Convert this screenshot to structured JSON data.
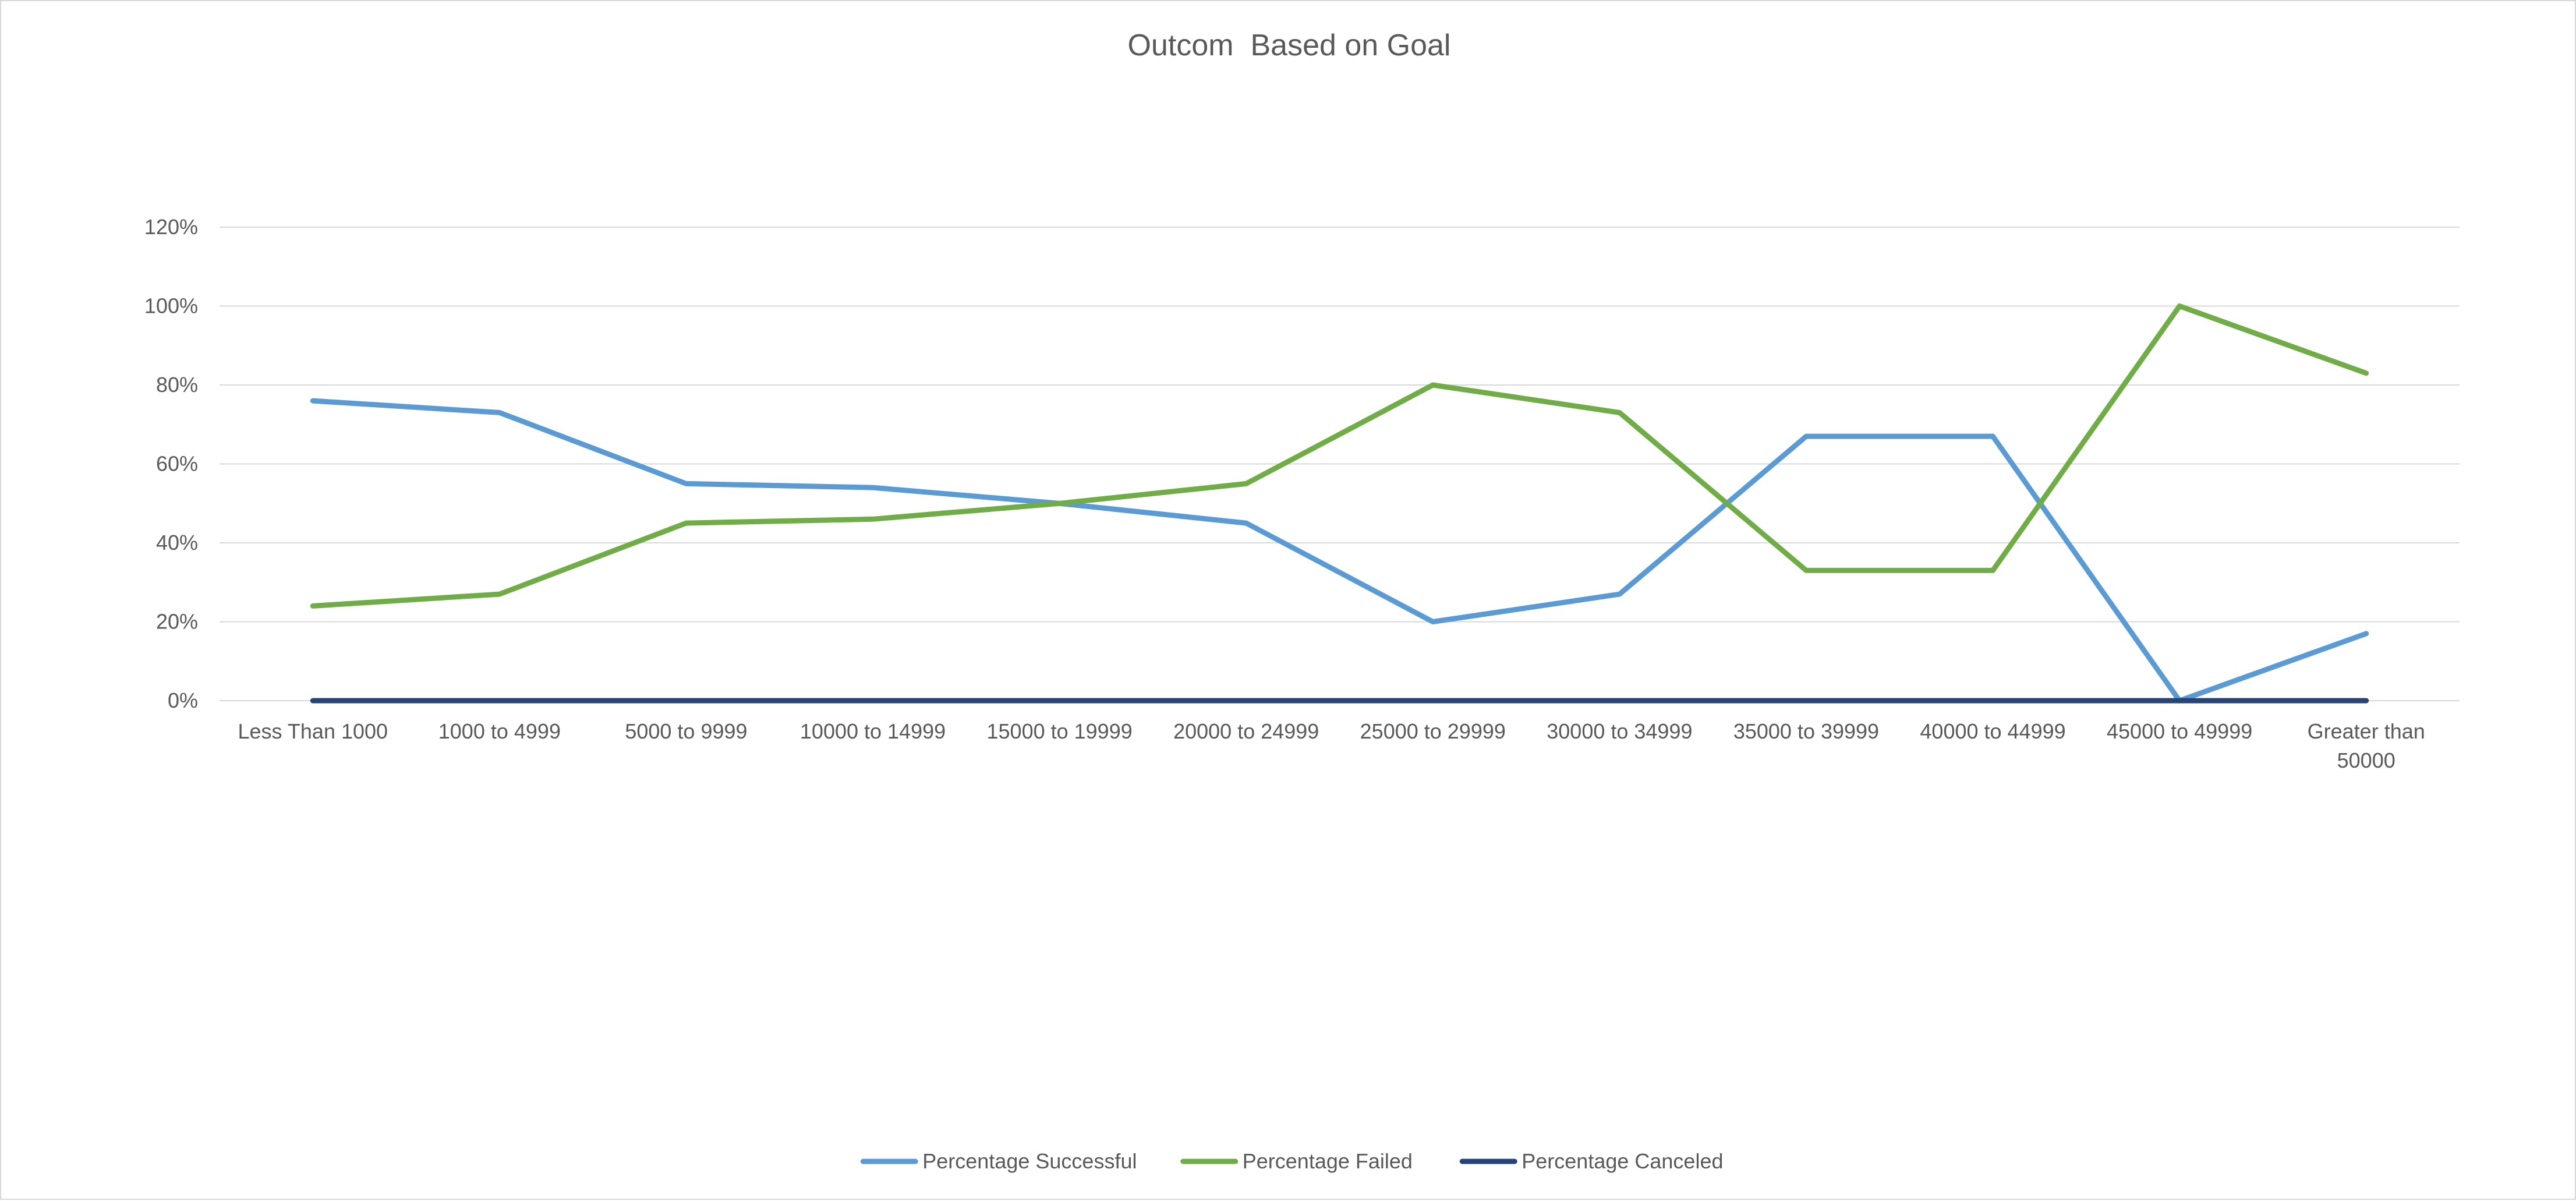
{
  "chart_data": {
    "type": "line",
    "title": "Outcom  Based on Goal",
    "xlabel": "",
    "ylabel": "",
    "categories": [
      "Less Than 1000",
      "1000 to 4999",
      "5000 to 9999",
      "10000 to 14999",
      "15000 to 19999",
      "20000 to 24999",
      "25000 to 29999",
      "30000 to 34999",
      "35000 to 39999",
      "40000 to 44999",
      "45000 to 49999",
      "Greater than 50000"
    ],
    "category_lines": [
      [
        "Less Than 1000"
      ],
      [
        "1000 to 4999"
      ],
      [
        "5000 to 9999"
      ],
      [
        "10000 to 14999"
      ],
      [
        "15000 to 19999"
      ],
      [
        "20000 to 24999"
      ],
      [
        "25000 to 29999"
      ],
      [
        "30000 to 34999"
      ],
      [
        "35000 to 39999"
      ],
      [
        "40000 to 44999"
      ],
      [
        "45000 to 49999"
      ],
      [
        "Greater than",
        "50000"
      ]
    ],
    "series": [
      {
        "name": "Percentage Successful",
        "color": "#5b9bd5",
        "values": [
          0.76,
          0.73,
          0.55,
          0.54,
          0.5,
          0.45,
          0.2,
          0.27,
          0.67,
          0.67,
          0.0,
          0.17
        ]
      },
      {
        "name": "Percentage Failed",
        "color": "#70ad47",
        "values": [
          0.24,
          0.27,
          0.45,
          0.46,
          0.5,
          0.55,
          0.8,
          0.73,
          0.33,
          0.33,
          1.0,
          0.83
        ]
      },
      {
        "name": "Percentage Canceled",
        "color": "#264478",
        "values": [
          0,
          0,
          0,
          0,
          0,
          0,
          0,
          0,
          0,
          0,
          0,
          0
        ]
      }
    ],
    "ylim": [
      0,
      1.2
    ],
    "y_ticks": [
      0,
      0.2,
      0.4,
      0.6,
      0.8,
      1.0,
      1.2
    ],
    "y_tick_labels": [
      "0%",
      "20%",
      "40%",
      "60%",
      "80%",
      "100%",
      "120%"
    ],
    "grid": true,
    "legend_position": "bottom"
  }
}
